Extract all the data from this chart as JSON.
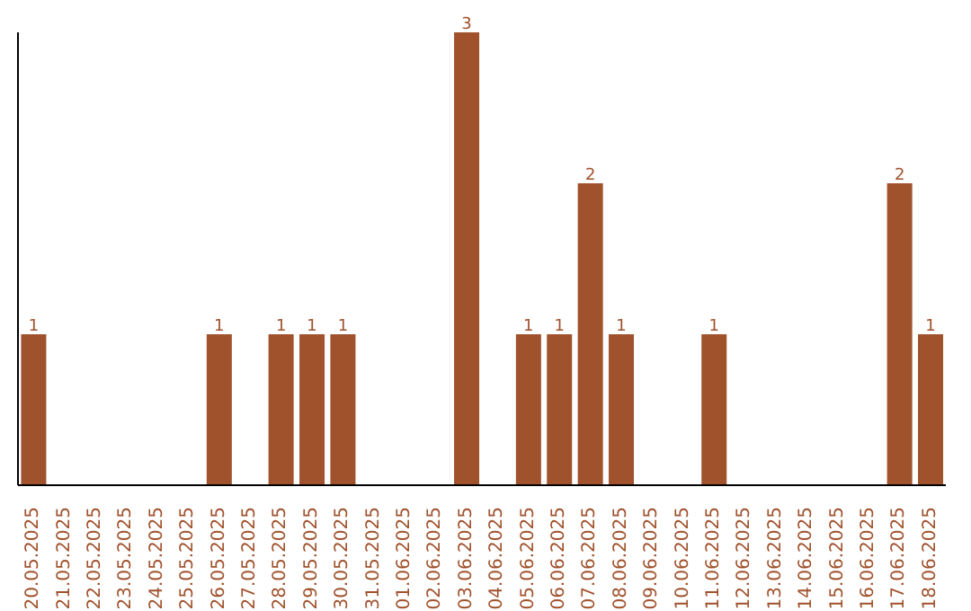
{
  "chart_data": {
    "type": "bar",
    "categories": [
      "20.05.2025",
      "21.05.2025",
      "22.05.2025",
      "23.05.2025",
      "24.05.2025",
      "25.05.2025",
      "26.05.2025",
      "27.05.2025",
      "28.05.2025",
      "29.05.2025",
      "30.05.2025",
      "31.05.2025",
      "01.06.2025",
      "02.06.2025",
      "03.06.2025",
      "04.06.2025",
      "05.06.2025",
      "06.06.2025",
      "07.06.2025",
      "08.06.2025",
      "09.06.2025",
      "10.06.2025",
      "11.06.2025",
      "12.06.2025",
      "13.06.2025",
      "14.06.2025",
      "15.06.2025",
      "16.06.2025",
      "17.06.2025",
      "18.06.2025"
    ],
    "values": [
      1,
      0,
      0,
      0,
      0,
      0,
      1,
      0,
      1,
      1,
      1,
      0,
      0,
      0,
      3,
      0,
      1,
      1,
      2,
      1,
      0,
      0,
      1,
      0,
      0,
      0,
      0,
      0,
      2,
      1
    ],
    "value_labels": [
      "1",
      null,
      null,
      null,
      null,
      null,
      "1",
      null,
      "1",
      "1",
      "1",
      null,
      null,
      null,
      "3",
      null,
      "1",
      "1",
      "2",
      "1",
      null,
      null,
      "1",
      null,
      null,
      null,
      null,
      null,
      "2",
      "1"
    ],
    "color": "#a0522d",
    "tick_labels": "x"
  }
}
